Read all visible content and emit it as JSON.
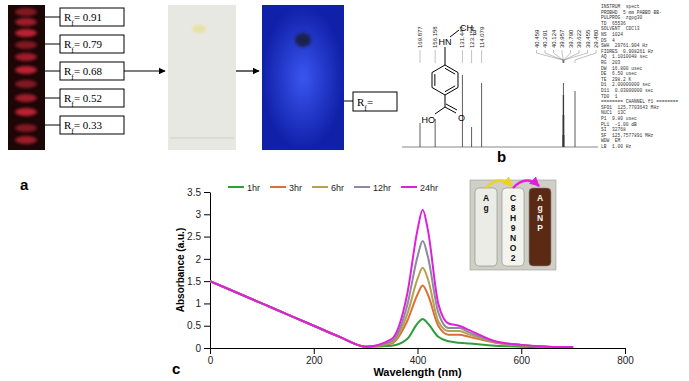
{
  "panels": {
    "a": {
      "label": "a",
      "rf_labels": [
        "Rf= 0.91",
        "Rf= 0.79",
        "Rf= 0.68",
        "Rf= 0.52",
        "Rf= 0.33"
      ],
      "result_label": "Rf="
    },
    "b": {
      "label": "b",
      "structure": {
        "amine": "HN",
        "methyl": "CH3",
        "hydroxyl": "HO",
        "carbonyl": "O"
      },
      "peaks": [
        {
          "ppm": 169.877,
          "label": "169.877",
          "intensity": 0.3
        },
        {
          "ppm": 156.158,
          "label": "156.158",
          "intensity": 0.35
        },
        {
          "ppm": 131.447,
          "label": "131.447",
          "intensity": 0.9
        },
        {
          "ppm": 123.15,
          "label": "123.150",
          "intensity": 0.25
        },
        {
          "ppm": 114.079,
          "label": "114.079",
          "intensity": 0.8
        },
        {
          "ppm": 40.459,
          "label": "40.459",
          "intensity": 0.15
        },
        {
          "ppm": 40.291,
          "label": "40.291",
          "intensity": 0.4
        },
        {
          "ppm": 40.124,
          "label": "40.124",
          "intensity": 0.65
        },
        {
          "ppm": 39.957,
          "label": "39.957",
          "intensity": 0.8
        },
        {
          "ppm": 39.79,
          "label": "39.790",
          "intensity": 0.65
        },
        {
          "ppm": 39.622,
          "label": "39.622",
          "intensity": 0.4
        },
        {
          "ppm": 39.455,
          "label": "39.455",
          "intensity": 0.15
        },
        {
          "ppm": 29.48,
          "label": "29.480",
          "intensity": 0.7
        }
      ],
      "parameters": [
        "INSTRUM  spect",
        "PROBHD  5 mm PABBO BB-",
        "PULPROG  zgpg30",
        "TD  65536",
        "SOLVENT  CDCl3",
        "NS  1024",
        "DS  4",
        "SWH  29761.904 Hz",
        "FIDRES  0.908261 Hz",
        "AQ  1.1010048 sec",
        "RG  203",
        "DW  16.800 usec",
        "DE  6.50 usec",
        "TE  298.2 K",
        "D1  2.00000000 sec",
        "D11  0.03000000 sec",
        "TD0  1",
        "======== CHANNEL f1 ========",
        "SFO1  125.7703643 MHz",
        "NUC1  13C",
        "P1  9.80 usec",
        "PL1  -1.00 dB",
        "SI  32768",
        "SF  125.7577891 MHz",
        "WDW  EM",
        "LB  1.00 Hz"
      ]
    }
  },
  "chart_data": {
    "type": "line",
    "label": "c",
    "xlabel": "Wavelength (nm)",
    "ylabel": "Absorbance (a.u.)",
    "x": [
      0,
      50,
      100,
      150,
      200,
      250,
      300,
      350,
      380,
      400,
      410,
      420,
      440,
      460,
      480,
      500,
      550,
      600,
      650,
      700
    ],
    "series": [
      {
        "name": "1hr",
        "color": "#2e9e3a",
        "values": [
          1.5,
          1.25,
          1.0,
          0.75,
          0.5,
          0.25,
          0.03,
          0.05,
          0.2,
          0.55,
          0.65,
          0.55,
          0.25,
          0.15,
          0.12,
          0.1,
          0.05,
          0.03,
          0.02,
          0.02
        ]
      },
      {
        "name": "3hr",
        "color": "#d9703a",
        "values": [
          1.5,
          1.25,
          1.0,
          0.75,
          0.5,
          0.25,
          0.03,
          0.1,
          0.6,
          1.2,
          1.4,
          1.2,
          0.5,
          0.3,
          0.3,
          0.25,
          0.12,
          0.06,
          0.03,
          0.02
        ]
      },
      {
        "name": "6hr",
        "color": "#b8a050",
        "values": [
          1.5,
          1.25,
          1.0,
          0.75,
          0.5,
          0.25,
          0.03,
          0.12,
          0.75,
          1.55,
          1.8,
          1.55,
          0.6,
          0.38,
          0.38,
          0.3,
          0.13,
          0.06,
          0.03,
          0.02
        ]
      },
      {
        "name": "12hr",
        "color": "#8a8aa0",
        "values": [
          1.5,
          1.25,
          1.0,
          0.75,
          0.5,
          0.25,
          0.03,
          0.15,
          0.95,
          2.05,
          2.4,
          2.05,
          0.8,
          0.45,
          0.45,
          0.35,
          0.14,
          0.07,
          0.03,
          0.02
        ]
      },
      {
        "name": "24hr",
        "color": "#e020d8",
        "values": [
          1.5,
          1.25,
          1.0,
          0.75,
          0.5,
          0.25,
          0.03,
          0.2,
          1.2,
          2.65,
          3.1,
          2.65,
          1.0,
          0.55,
          0.5,
          0.4,
          0.15,
          0.07,
          0.03,
          0.02
        ]
      }
    ],
    "xlim": [
      0,
      800
    ],
    "xticks": [
      0,
      200,
      400,
      600,
      800
    ],
    "ylim": [
      0,
      3.5
    ],
    "yticks": [
      0,
      0.5,
      1,
      1.5,
      2,
      2.5,
      3,
      3.5
    ],
    "legend": "top",
    "inset_labels": [
      "Ag",
      "C8H9NO2",
      "AgNP"
    ]
  }
}
